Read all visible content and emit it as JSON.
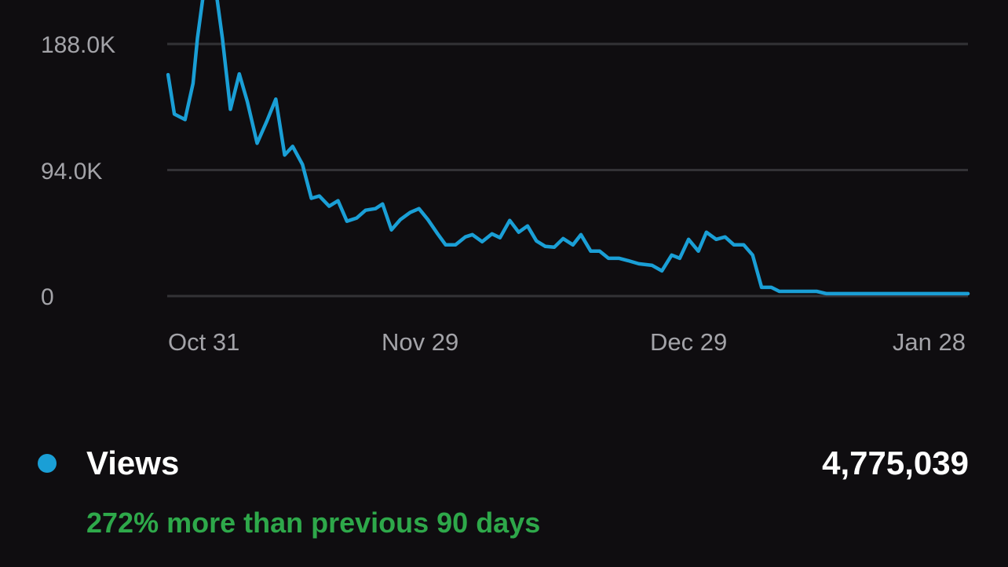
{
  "colors": {
    "background": "#0f0d10",
    "line": "#1a9fd6",
    "grid": "#333236",
    "axis_text": "#a3a3a8",
    "positive": "#2ea84a"
  },
  "chart_data": {
    "type": "line",
    "title": "",
    "xlabel": "",
    "ylabel": "",
    "ylim": [
      0,
      188
    ],
    "xlim": [
      0,
      90
    ],
    "y_unit": "K views",
    "grid": true,
    "yticks": [
      {
        "value": 188,
        "label": "188.0K"
      },
      {
        "value": 94,
        "label": "94.0K"
      },
      {
        "value": 0,
        "label": "0"
      }
    ],
    "xticks": [
      {
        "label": "Oct 31"
      },
      {
        "label": "Nov 29"
      },
      {
        "label": "Dec 29"
      },
      {
        "label": "Jan 28"
      }
    ],
    "series": [
      {
        "name": "Views",
        "x": [
          0.1,
          0.8,
          2.0,
          2.9,
          3.4,
          4.7,
          5.6,
          6.2,
          7.1,
          8.1,
          9.0,
          10.1,
          11.2,
          12.2,
          13.2,
          14.1,
          15.2,
          16.2,
          17.1,
          18.2,
          19.2,
          20.2,
          21.3,
          22.3,
          23.4,
          24.2,
          25.2,
          26.2,
          27.3,
          28.3,
          29.3,
          30.4,
          31.3,
          32.4,
          33.5,
          34.3,
          35.4,
          36.5,
          37.4,
          38.5,
          39.5,
          40.5,
          41.5,
          42.5,
          43.5,
          44.5,
          45.6,
          46.5,
          47.6,
          48.6,
          49.6,
          50.8,
          51.8,
          53.0,
          54.5,
          55.6,
          56.7,
          57.6,
          58.6,
          59.7,
          60.6,
          61.7,
          62.7,
          63.7,
          64.8,
          65.8,
          66.8,
          67.9,
          68.8,
          73.0,
          74.1,
          90.0
        ],
        "values": [
          165.1,
          135.7,
          131.6,
          158.6,
          192.2,
          256.7,
          221.5,
          192.2,
          139.3,
          165.7,
          145.1,
          114.0,
          130.4,
          146.9,
          105.2,
          111.6,
          98.1,
          72.9,
          74.6,
          67.0,
          71.1,
          55.8,
          58.2,
          64.0,
          65.2,
          68.7,
          49.4,
          57.0,
          62.3,
          65.2,
          57.0,
          46.4,
          38.2,
          38.2,
          44.1,
          45.8,
          40.5,
          46.4,
          43.5,
          56.4,
          47.6,
          52.3,
          41.1,
          37.0,
          36.4,
          42.9,
          38.2,
          45.8,
          33.5,
          33.5,
          28.2,
          28.2,
          26.4,
          24.1,
          22.9,
          18.8,
          30.6,
          28.2,
          42.3,
          33.5,
          47.6,
          42.3,
          44.1,
          38.2,
          38.2,
          30.6,
          6.5,
          6.5,
          3.5,
          3.5,
          1.8,
          1.8
        ]
      }
    ]
  },
  "summary": {
    "metric_label": "Views",
    "total": "4,775,039",
    "comparison": "272% more than previous 90 days"
  }
}
